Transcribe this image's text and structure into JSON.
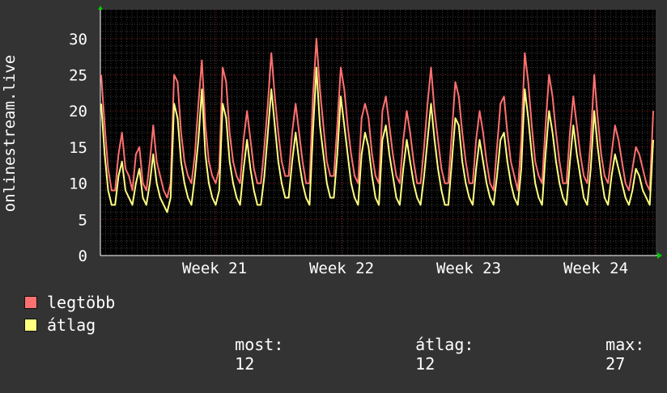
{
  "chart_data": {
    "type": "line",
    "ylabel": "onlinestream.live",
    "yticks": [
      0,
      5,
      10,
      15,
      20,
      25,
      30
    ],
    "ylim": [
      0,
      34
    ],
    "xticks": [
      "Week 21",
      "Week 22",
      "Week 23",
      "Week 24"
    ],
    "grid": true,
    "background": "#000000",
    "series": [
      {
        "name": "legtöbb",
        "color": "#ff7070",
        "values": [
          25,
          18,
          12,
          9,
          9,
          14,
          17,
          12,
          11,
          9,
          14,
          15,
          10,
          9,
          13,
          18,
          13,
          11,
          9,
          8,
          10,
          25,
          24,
          17,
          13,
          11,
          10,
          14,
          21,
          27,
          18,
          13,
          11,
          10,
          12,
          26,
          24,
          17,
          13,
          11,
          10,
          16,
          20,
          16,
          12,
          10,
          10,
          15,
          21,
          28,
          22,
          17,
          13,
          11,
          11,
          17,
          21,
          17,
          13,
          10,
          10,
          22,
          30,
          23,
          18,
          13,
          11,
          11,
          18,
          26,
          23,
          18,
          14,
          11,
          10,
          19,
          21,
          19,
          14,
          11,
          10,
          20,
          22,
          18,
          14,
          11,
          10,
          16,
          20,
          17,
          13,
          10,
          10,
          15,
          21,
          26,
          20,
          16,
          12,
          10,
          10,
          17,
          24,
          22,
          17,
          13,
          10,
          10,
          16,
          20,
          17,
          13,
          10,
          9,
          15,
          21,
          22,
          17,
          13,
          11,
          9,
          16,
          28,
          24,
          18,
          13,
          11,
          10,
          18,
          25,
          22,
          17,
          13,
          10,
          10,
          17,
          22,
          18,
          14,
          11,
          10,
          16,
          25,
          19,
          14,
          11,
          10,
          14,
          18,
          16,
          13,
          10,
          9,
          12,
          15,
          14,
          12,
          10,
          9,
          20
        ]
      },
      {
        "name": "átlag",
        "color": "#ffff80",
        "values": [
          21,
          14,
          9,
          7,
          7,
          11,
          13,
          9,
          8,
          7,
          10,
          12,
          8,
          7,
          10,
          14,
          10,
          8,
          7,
          6,
          8,
          21,
          19,
          13,
          10,
          8,
          7,
          11,
          16,
          23,
          14,
          10,
          8,
          7,
          9,
          21,
          19,
          13,
          10,
          8,
          7,
          12,
          16,
          12,
          9,
          7,
          7,
          11,
          17,
          23,
          18,
          13,
          10,
          8,
          8,
          13,
          17,
          13,
          10,
          8,
          7,
          17,
          26,
          18,
          14,
          10,
          8,
          8,
          14,
          22,
          18,
          14,
          10,
          8,
          7,
          14,
          17,
          15,
          11,
          8,
          7,
          16,
          18,
          14,
          11,
          8,
          7,
          12,
          16,
          13,
          10,
          8,
          7,
          11,
          16,
          21,
          16,
          12,
          9,
          7,
          7,
          13,
          19,
          18,
          13,
          10,
          8,
          7,
          12,
          16,
          13,
          10,
          8,
          7,
          11,
          16,
          17,
          13,
          10,
          8,
          7,
          12,
          23,
          19,
          14,
          10,
          8,
          7,
          14,
          20,
          17,
          13,
          10,
          8,
          7,
          13,
          18,
          14,
          11,
          8,
          7,
          12,
          20,
          15,
          11,
          8,
          7,
          11,
          14,
          12,
          10,
          8,
          7,
          9,
          12,
          11,
          9,
          8,
          7,
          16
        ]
      }
    ]
  },
  "legend": {
    "items": [
      {
        "label": "legtöbb",
        "color": "#ff7070"
      },
      {
        "label": "átlag",
        "color": "#ffff80"
      }
    ],
    "stats": {
      "most_label": "most:",
      "most_value": "12",
      "avg_label": "átlag:",
      "avg_value": "12",
      "max_label": "max:",
      "max_value": "27"
    }
  }
}
